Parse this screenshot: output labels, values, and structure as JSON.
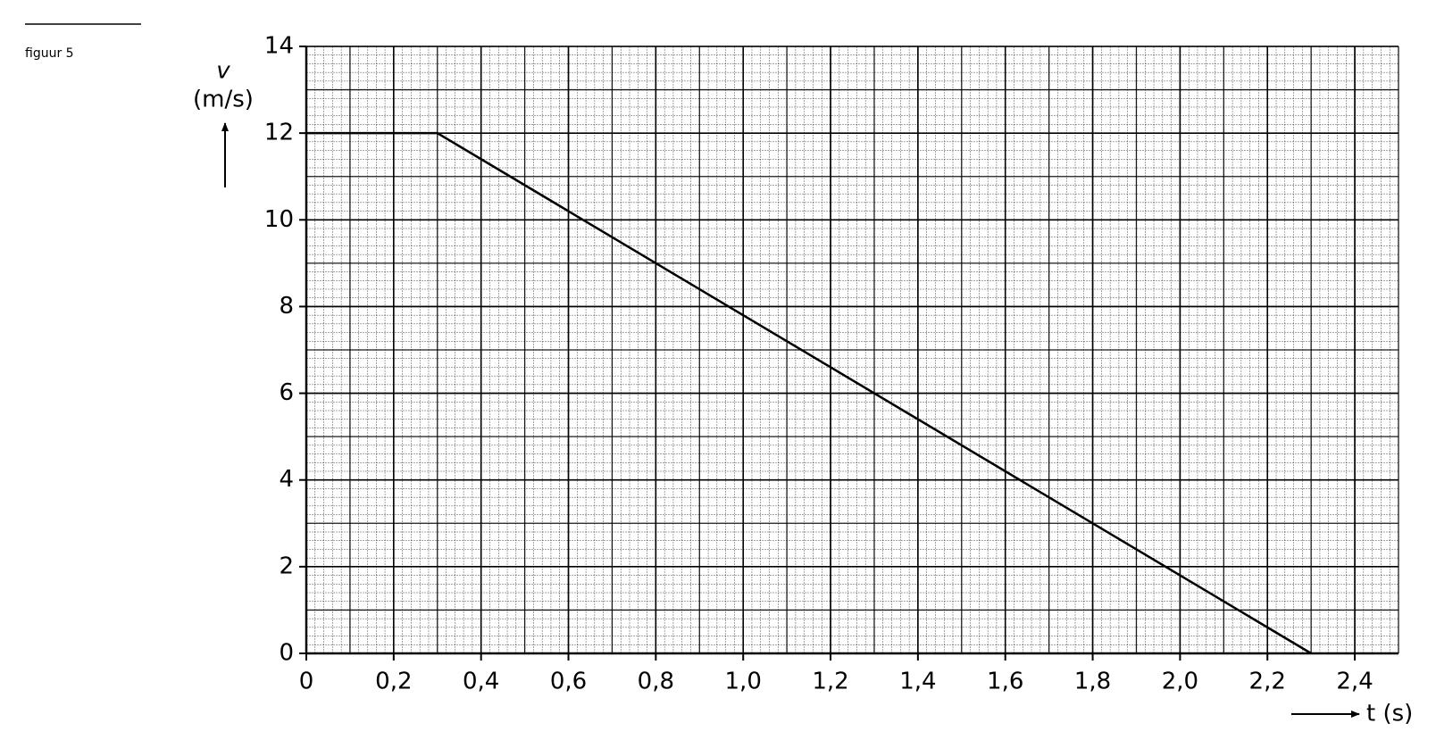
{
  "caption": "figuur 5",
  "chart_data": {
    "type": "line",
    "y_label": "v",
    "y_unit": "(m/s)",
    "x_label": "t (s)",
    "x": [
      0,
      0.3,
      2.3
    ],
    "series": [
      {
        "values": [
          12,
          12,
          0
        ],
        "color": "#000000"
      }
    ],
    "xlim": [
      0,
      2.5
    ],
    "xticks": [
      0,
      {
        "value": 0.2,
        "label": "0,2"
      },
      {
        "value": 0.4,
        "label": "0,4"
      },
      {
        "value": 0.6,
        "label": "0,6"
      },
      {
        "value": 0.8,
        "label": "0,8"
      },
      {
        "value": 1.0,
        "label": "1,0"
      },
      {
        "value": 1.2,
        "label": "1,2"
      },
      {
        "value": 1.4,
        "label": "1,4"
      },
      {
        "value": 1.6,
        "label": "1,6"
      },
      {
        "value": 1.8,
        "label": "1,8"
      },
      {
        "value": 2.0,
        "label": "2,0"
      },
      {
        "value": 2.2,
        "label": "2,2"
      },
      {
        "value": 2.4,
        "label": "2,4"
      }
    ],
    "ylim": [
      0,
      14
    ],
    "yticks": [
      0,
      2,
      4,
      6,
      8,
      10,
      12,
      14
    ],
    "grid": true
  }
}
